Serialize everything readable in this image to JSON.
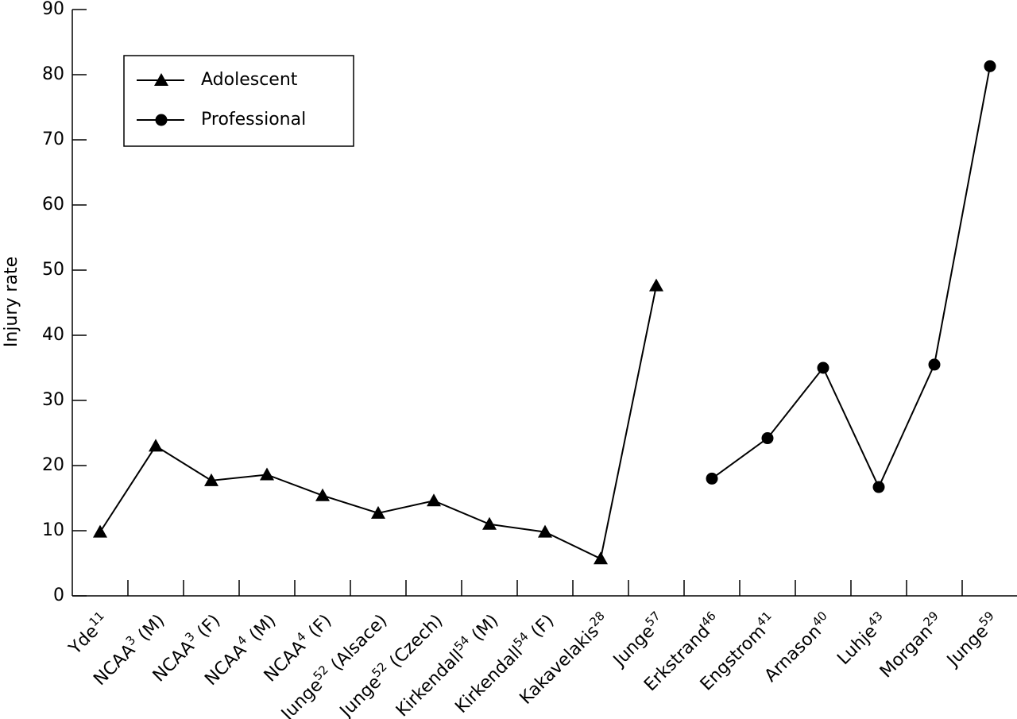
{
  "chart_data": {
    "type": "line",
    "y_label": "Injury rate",
    "categories": [
      [
        "Yde",
        "11"
      ],
      [
        "NCAA",
        "3",
        " (M)"
      ],
      [
        "NCAA",
        "3",
        " (F)"
      ],
      [
        "NCAA",
        "4",
        " (M)"
      ],
      [
        "NCAA",
        "4",
        " (F)"
      ],
      [
        "Junge",
        "52",
        " (Alsace)"
      ],
      [
        "Junge",
        "52",
        " (Czech)"
      ],
      [
        "Kirkendall",
        "54",
        " (M)"
      ],
      [
        "Kirkendall",
        "54",
        " (F)"
      ],
      [
        "Kakavelakis",
        "28"
      ],
      [
        "Junge",
        "57"
      ],
      [
        "Erkstrand",
        "46"
      ],
      [
        "Engstrom",
        "41"
      ],
      [
        "Arnason",
        "40"
      ],
      [
        "Luhje",
        "43"
      ],
      [
        "Morgan",
        "29"
      ],
      [
        "Junge",
        "59"
      ]
    ],
    "series": [
      {
        "name": "Adolescent",
        "color": "#000000",
        "marker": "triangle",
        "values": [
          9.8,
          23,
          17.7,
          18.6,
          15.4,
          12.7,
          14.6,
          11,
          9.8,
          5.7,
          47.6,
          null,
          null,
          null,
          null,
          null,
          null
        ]
      },
      {
        "name": "Professional",
        "color": "#000000",
        "marker": "circle",
        "values": [
          null,
          null,
          null,
          null,
          null,
          null,
          null,
          null,
          null,
          null,
          null,
          18,
          24.2,
          35,
          16.7,
          35.5,
          81.3
        ]
      }
    ],
    "ylim": [
      0,
      90
    ],
    "yticks": [
      0,
      10,
      20,
      30,
      40,
      50,
      60,
      70,
      80,
      90
    ],
    "legend": "upper left",
    "grid": false
  }
}
